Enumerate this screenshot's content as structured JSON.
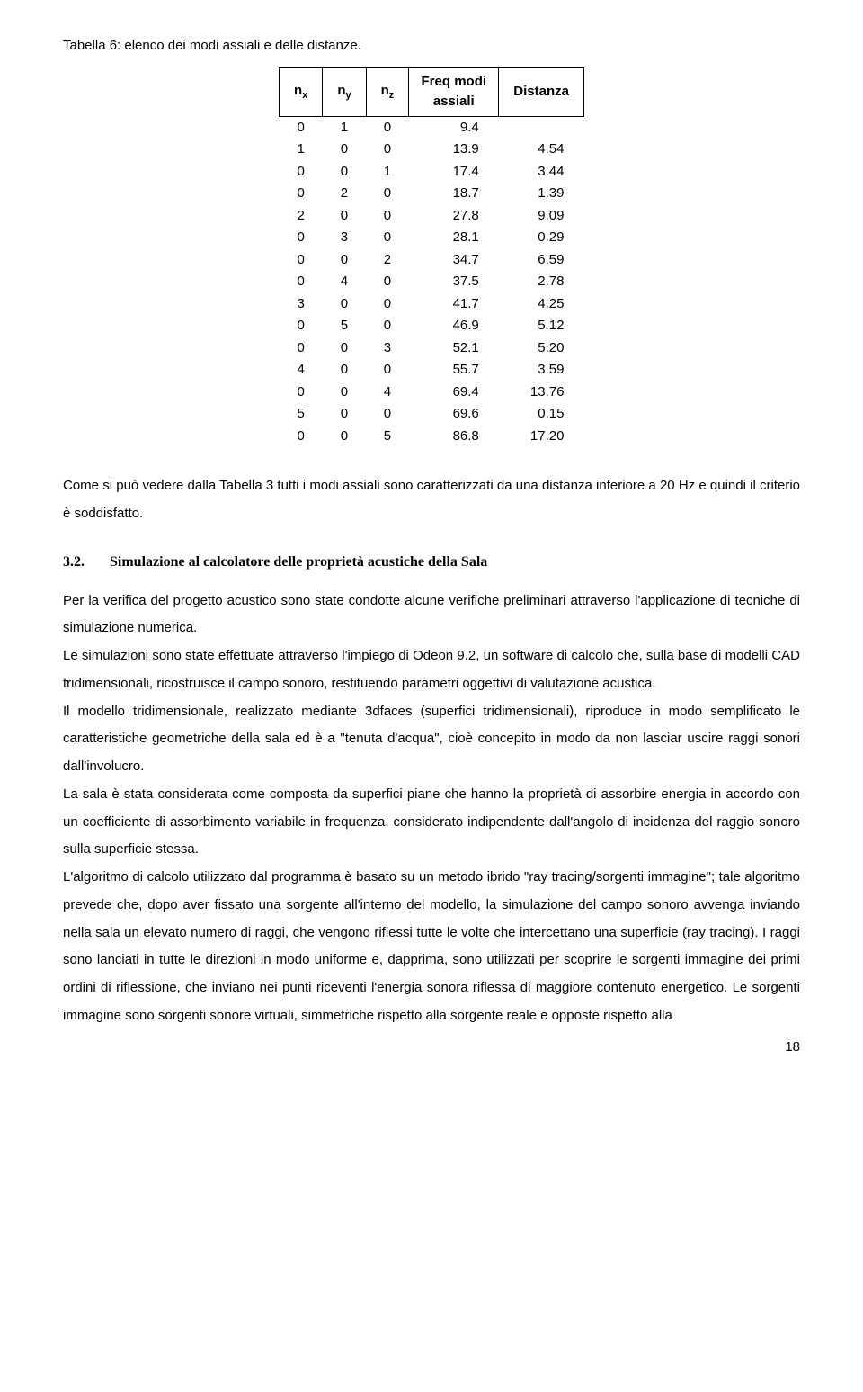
{
  "caption": "Tabella 6: elenco dei modi assiali e delle distanze.",
  "table": {
    "headers": {
      "nx": "n",
      "nx_sub": "x",
      "ny": "n",
      "ny_sub": "y",
      "nz": "n",
      "nz_sub": "z",
      "freq_line1": "Freq modi",
      "freq_line2": "assiali",
      "dist": "Distanza"
    },
    "rows": [
      {
        "nx": "0",
        "ny": "1",
        "nz": "0",
        "freq": "9.4",
        "dist": ""
      },
      {
        "nx": "1",
        "ny": "0",
        "nz": "0",
        "freq": "13.9",
        "dist": "4.54"
      },
      {
        "nx": "0",
        "ny": "0",
        "nz": "1",
        "freq": "17.4",
        "dist": "3.44"
      },
      {
        "nx": "0",
        "ny": "2",
        "nz": "0",
        "freq": "18.7",
        "dist": "1.39"
      },
      {
        "nx": "2",
        "ny": "0",
        "nz": "0",
        "freq": "27.8",
        "dist": "9.09"
      },
      {
        "nx": "0",
        "ny": "3",
        "nz": "0",
        "freq": "28.1",
        "dist": "0.29"
      },
      {
        "nx": "0",
        "ny": "0",
        "nz": "2",
        "freq": "34.7",
        "dist": "6.59"
      },
      {
        "nx": "0",
        "ny": "4",
        "nz": "0",
        "freq": "37.5",
        "dist": "2.78"
      },
      {
        "nx": "3",
        "ny": "0",
        "nz": "0",
        "freq": "41.7",
        "dist": "4.25"
      },
      {
        "nx": "0",
        "ny": "5",
        "nz": "0",
        "freq": "46.9",
        "dist": "5.12"
      },
      {
        "nx": "0",
        "ny": "0",
        "nz": "3",
        "freq": "52.1",
        "dist": "5.20"
      },
      {
        "nx": "4",
        "ny": "0",
        "nz": "0",
        "freq": "55.7",
        "dist": "3.59"
      },
      {
        "nx": "0",
        "ny": "0",
        "nz": "4",
        "freq": "69.4",
        "dist": "13.76"
      },
      {
        "nx": "5",
        "ny": "0",
        "nz": "0",
        "freq": "69.6",
        "dist": "0.15"
      },
      {
        "nx": "0",
        "ny": "0",
        "nz": "5",
        "freq": "86.8",
        "dist": "17.20"
      }
    ]
  },
  "para1": "Come si può vedere dalla Tabella 3 tutti i modi assiali sono caratterizzati da una distanza inferiore a 20 Hz e quindi il criterio è soddisfatto.",
  "section": {
    "number": "3.2.",
    "title": "Simulazione al calcolatore delle proprietà acustiche della Sala"
  },
  "para2": "Per la verifica del progetto acustico sono state condotte alcune verifiche preliminari attraverso l'applicazione di tecniche di simulazione numerica.",
  "para3": "Le simulazioni sono state effettuate attraverso l'impiego di Odeon 9.2, un software di calcolo che, sulla base di modelli CAD tridimensionali, ricostruisce il campo sonoro, restituendo parametri oggettivi di valutazione acustica.",
  "para4": "Il modello tridimensionale, realizzato mediante 3dfaces (superfici tridimensionali), riproduce in modo semplificato le caratteristiche geometriche della sala ed è a \"tenuta d'acqua\", cioè concepito in modo da non lasciar uscire raggi sonori dall'involucro.",
  "para5": "La sala è stata considerata come composta da superfici piane che hanno la proprietà di assorbire energia in accordo con un coefficiente di assorbimento variabile in frequenza, considerato indipendente dall'angolo di incidenza del raggio sonoro sulla superficie stessa.",
  "para6": "L'algoritmo di calcolo utilizzato dal programma è basato su un metodo ibrido \"ray tracing/sorgenti immagine\"; tale algoritmo prevede che, dopo aver fissato una sorgente all'interno del modello, la simulazione del campo sonoro avvenga inviando nella sala un elevato numero di raggi, che vengono riflessi tutte le volte che intercettano una superficie (ray tracing). I raggi sono lanciati in tutte le direzioni in modo uniforme e, dapprima, sono utilizzati per scoprire le sorgenti immagine dei primi ordini di riflessione, che inviano nei punti riceventi l'energia sonora riflessa di maggiore contenuto energetico. Le sorgenti immagine sono sorgenti sonore virtuali, simmetriche rispetto alla sorgente reale e opposte rispetto alla",
  "page_number": "18"
}
